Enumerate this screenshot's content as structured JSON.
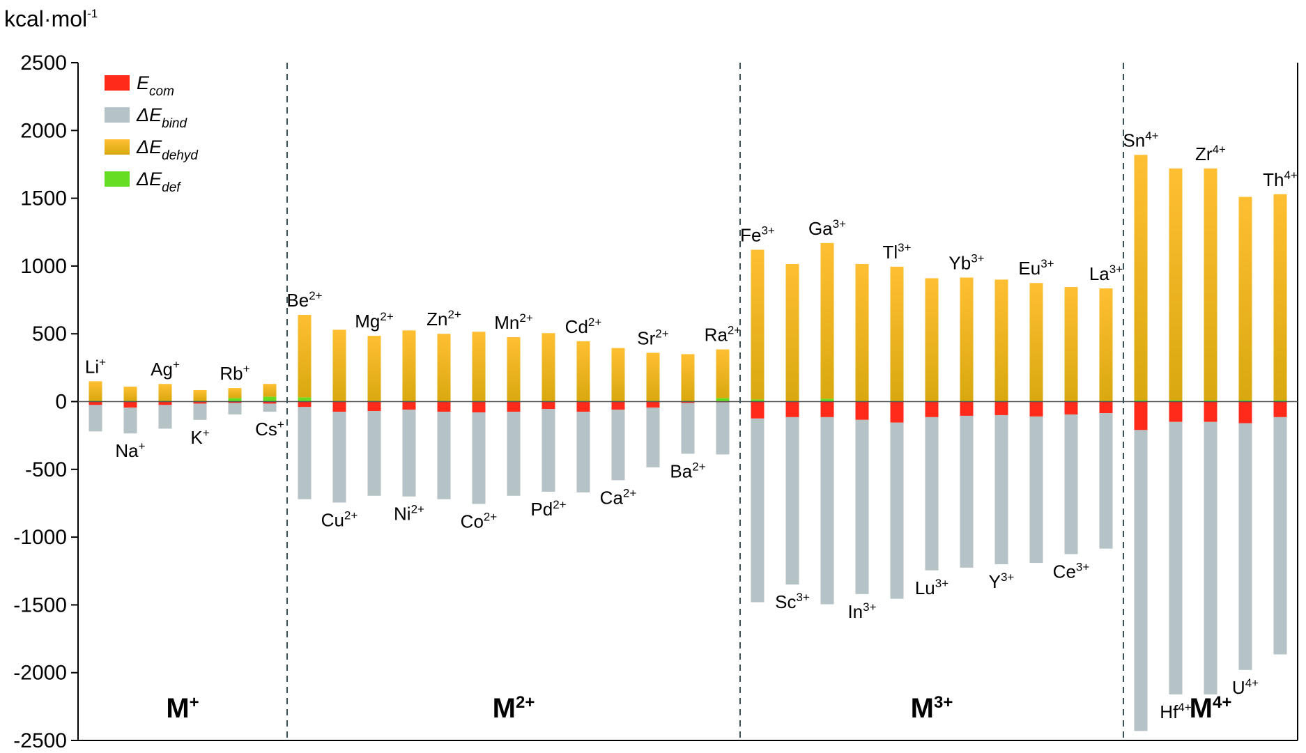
{
  "chart_data": {
    "type": "bar",
    "stacked": true,
    "unit_label": {
      "text": "kcal·mol",
      "sup": "-1"
    },
    "ylim": [
      -2500,
      2500
    ],
    "yticks": [
      "2500",
      "2000",
      "1500",
      "1000",
      "500",
      "0",
      "-500",
      "-1000",
      "-1500",
      "-2000",
      "-2500"
    ],
    "ytick_values": [
      2500,
      2000,
      1500,
      1000,
      500,
      0,
      -500,
      -1000,
      -1500,
      -2000,
      -2500
    ],
    "grid": false,
    "legend_position": "top-left",
    "colors": {
      "com": "#ff2a1a",
      "bind": "#b5c2c6",
      "dehyd_top": "#ffbf33",
      "dehyd_bottom": "#d9a80f",
      "def": "#66dd22",
      "zero_line": "#555555",
      "separator": "#3d4f57"
    },
    "legend": [
      {
        "key": "com",
        "prefix": "",
        "main": "E",
        "sub": "com"
      },
      {
        "key": "bind",
        "prefix": "Δ",
        "main": "E",
        "sub": "bind"
      },
      {
        "key": "dehyd",
        "prefix": "Δ",
        "main": "E",
        "sub": "dehyd"
      },
      {
        "key": "def",
        "prefix": "Δ",
        "main": "E",
        "sub": "def"
      }
    ],
    "groups": [
      {
        "label": "M",
        "sup": "+",
        "start": 0,
        "end": 5
      },
      {
        "label": "M",
        "sup": "2+",
        "start": 6,
        "end": 18
      },
      {
        "label": "M",
        "sup": "3+",
        "start": 19,
        "end": 29
      },
      {
        "label": "M",
        "sup": "4+",
        "start": 30,
        "end": 34
      }
    ],
    "ions": [
      {
        "name": "Li",
        "charge": "+",
        "label_pos": "top",
        "dehyd": 145,
        "def": 5,
        "com": -25,
        "bind": -195
      },
      {
        "name": "Na",
        "charge": "+",
        "label_pos": "bottom",
        "dehyd": 105,
        "def": 5,
        "com": -45,
        "bind": -190
      },
      {
        "name": "Ag",
        "charge": "+",
        "label_pos": "top",
        "dehyd": 125,
        "def": 5,
        "com": -25,
        "bind": -175
      },
      {
        "name": "K",
        "charge": "+",
        "label_pos": "bottom",
        "dehyd": 80,
        "def": 5,
        "com": -15,
        "bind": -120
      },
      {
        "name": "Rb",
        "charge": "+",
        "label_pos": "top",
        "dehyd": 75,
        "def": 25,
        "com": -10,
        "bind": -85
      },
      {
        "name": "Cs",
        "charge": "+",
        "label_pos": "bottom",
        "dehyd": 95,
        "def": 35,
        "com": -15,
        "bind": -60
      },
      {
        "name": "Be",
        "charge": "2+",
        "label_pos": "top",
        "dehyd": 610,
        "def": 30,
        "com": -40,
        "bind": -680
      },
      {
        "name": "Cu",
        "charge": "2+",
        "label_pos": "bottom",
        "dehyd": 525,
        "def": 5,
        "com": -75,
        "bind": -670
      },
      {
        "name": "Mg",
        "charge": "2+",
        "label_pos": "top",
        "dehyd": 480,
        "def": 5,
        "com": -70,
        "bind": -625
      },
      {
        "name": "Ni",
        "charge": "2+",
        "label_pos": "bottom",
        "dehyd": 520,
        "def": 5,
        "com": -60,
        "bind": -640
      },
      {
        "name": "Zn",
        "charge": "2+",
        "label_pos": "top",
        "dehyd": 495,
        "def": 5,
        "com": -75,
        "bind": -645
      },
      {
        "name": "Co",
        "charge": "2+",
        "label_pos": "bottom",
        "dehyd": 510,
        "def": 5,
        "com": -80,
        "bind": -675
      },
      {
        "name": "Mn",
        "charge": "2+",
        "label_pos": "top",
        "dehyd": 470,
        "def": 5,
        "com": -75,
        "bind": -620
      },
      {
        "name": "Pd",
        "charge": "2+",
        "label_pos": "bottom",
        "dehyd": 500,
        "def": 5,
        "com": -55,
        "bind": -610
      },
      {
        "name": "Cd",
        "charge": "2+",
        "label_pos": "top",
        "dehyd": 440,
        "def": 5,
        "com": -75,
        "bind": -595
      },
      {
        "name": "Ca",
        "charge": "2+",
        "label_pos": "bottom",
        "dehyd": 390,
        "def": 5,
        "com": -60,
        "bind": -520
      },
      {
        "name": "Sr",
        "charge": "2+",
        "label_pos": "top",
        "dehyd": 355,
        "def": 5,
        "com": -45,
        "bind": -440
      },
      {
        "name": "Ba",
        "charge": "2+",
        "label_pos": "bottom",
        "dehyd": 345,
        "def": 5,
        "com": -10,
        "bind": -375
      },
      {
        "name": "Ra",
        "charge": "2+",
        "label_pos": "top",
        "dehyd": 360,
        "def": 25,
        "com": -5,
        "bind": -385
      },
      {
        "name": "Fe",
        "charge": "3+",
        "label_pos": "top",
        "dehyd": 1105,
        "def": 15,
        "com": -125,
        "bind": -1355
      },
      {
        "name": "Sc",
        "charge": "3+",
        "label_pos": "bottom",
        "dehyd": 1010,
        "def": 5,
        "com": -115,
        "bind": -1235
      },
      {
        "name": "Ga",
        "charge": "3+",
        "label_pos": "top",
        "dehyd": 1150,
        "def": 20,
        "com": -115,
        "bind": -1380
      },
      {
        "name": "In",
        "charge": "3+",
        "label_pos": "bottom",
        "dehyd": 1010,
        "def": 5,
        "com": -135,
        "bind": -1285
      },
      {
        "name": "Tl",
        "charge": "3+",
        "label_pos": "top",
        "dehyd": 990,
        "def": 5,
        "com": -155,
        "bind": -1300
      },
      {
        "name": "Lu",
        "charge": "3+",
        "label_pos": "bottom",
        "dehyd": 905,
        "def": 5,
        "com": -115,
        "bind": -1130
      },
      {
        "name": "Yb",
        "charge": "3+",
        "label_pos": "top",
        "dehyd": 910,
        "def": 5,
        "com": -105,
        "bind": -1120
      },
      {
        "name": "Y",
        "charge": "3+",
        "label_pos": "bottom",
        "dehyd": 895,
        "def": 5,
        "com": -100,
        "bind": -1100
      },
      {
        "name": "Eu",
        "charge": "3+",
        "label_pos": "top",
        "dehyd": 870,
        "def": 5,
        "com": -110,
        "bind": -1080
      },
      {
        "name": "Ce",
        "charge": "3+",
        "label_pos": "bottom",
        "dehyd": 840,
        "def": 5,
        "com": -95,
        "bind": -1030
      },
      {
        "name": "La",
        "charge": "3+",
        "label_pos": "top",
        "dehyd": 830,
        "def": 5,
        "com": -85,
        "bind": -1000
      },
      {
        "name": "Sn",
        "charge": "4+",
        "label_pos": "top",
        "dehyd": 1810,
        "def": 10,
        "com": -210,
        "bind": -2220
      },
      {
        "name": "Hf",
        "charge": "4+",
        "label_pos": "bottom",
        "dehyd": 1710,
        "def": 10,
        "com": -150,
        "bind": -2010
      },
      {
        "name": "Zr",
        "charge": "4+",
        "label_pos": "top",
        "dehyd": 1710,
        "def": 10,
        "com": -150,
        "bind": -2010
      },
      {
        "name": "U",
        "charge": "4+",
        "label_pos": "bottom",
        "dehyd": 1500,
        "def": 10,
        "com": -160,
        "bind": -1820
      },
      {
        "name": "Th",
        "charge": "4+",
        "label_pos": "top",
        "dehyd": 1520,
        "def": 10,
        "com": -115,
        "bind": -1750
      }
    ]
  }
}
